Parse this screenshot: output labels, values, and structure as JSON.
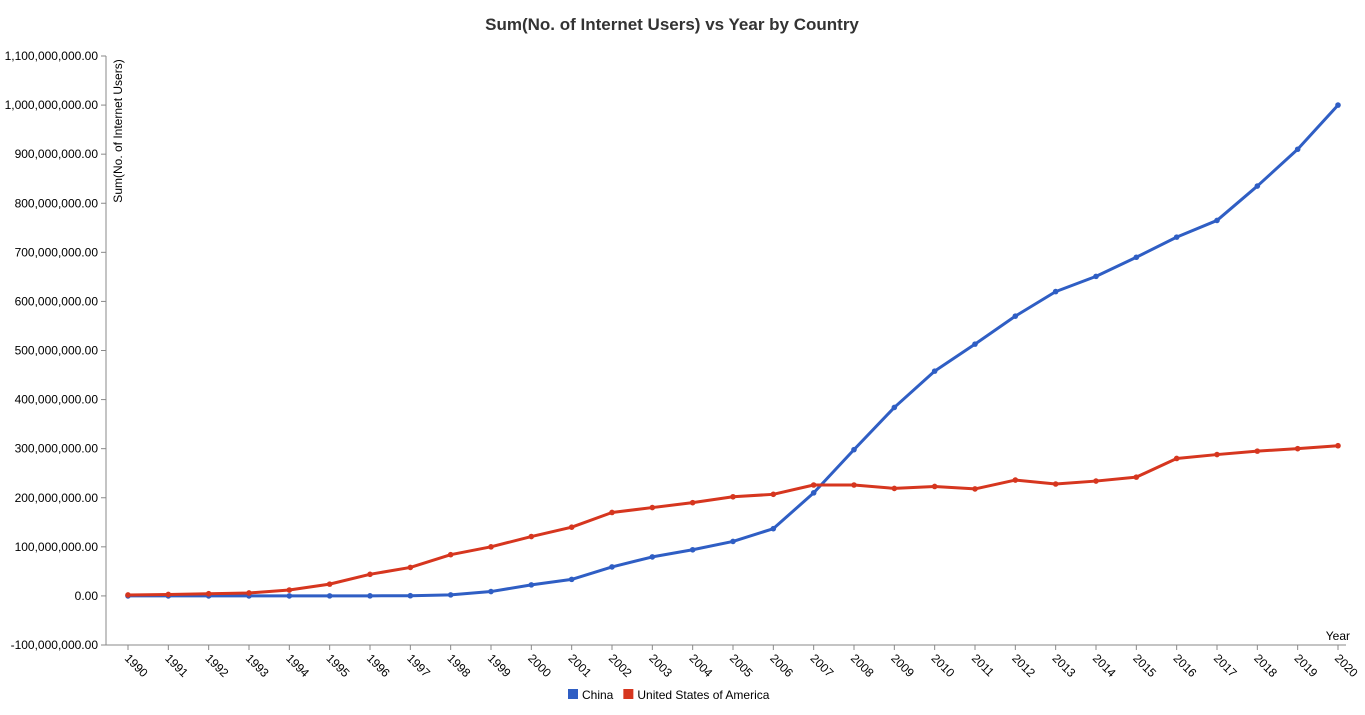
{
  "chart_data": {
    "type": "line",
    "title": "Sum(No. of Internet Users) vs Year by Country",
    "xlabel": "Year",
    "ylabel": "Sum(No. of Internet Users)",
    "ylim": [
      -100000000,
      1100000000
    ],
    "yticks": [
      -100000000,
      0,
      100000000,
      200000000,
      300000000,
      400000000,
      500000000,
      600000000,
      700000000,
      800000000,
      900000000,
      1000000000,
      1100000000
    ],
    "ytick_labels": [
      "-100,000,000.00",
      "0.00",
      "100,000,000.00",
      "200,000,000.00",
      "300,000,000.00",
      "400,000,000.00",
      "500,000,000.00",
      "600,000,000.00",
      "700,000,000.00",
      "800,000,000.00",
      "900,000,000.00",
      "1,000,000,000.00",
      "1,100,000,000.00"
    ],
    "x": [
      "1990",
      "1991",
      "1992",
      "1993",
      "1994",
      "1995",
      "1996",
      "1997",
      "1998",
      "1999",
      "2000",
      "2001",
      "2002",
      "2003",
      "2004",
      "2005",
      "2006",
      "2007",
      "2008",
      "2009",
      "2010",
      "2011",
      "2012",
      "2013",
      "2014",
      "2015",
      "2016",
      "2017",
      "2018",
      "2019",
      "2020"
    ],
    "series": [
      {
        "name": "China",
        "color": "#2f5ec4",
        "values": [
          0,
          0,
          0,
          2000,
          14000,
          60000,
          160000,
          400000,
          2100000,
          8900000,
          22500000,
          33700000,
          59100000,
          79500000,
          94000000,
          111000000,
          137000000,
          210000000,
          298000000,
          384000000,
          458000000,
          513000000,
          570000000,
          620000000,
          651000000,
          690000000,
          731000000,
          765000000,
          835000000,
          910000000,
          1000000000
        ]
      },
      {
        "name": "United States of America",
        "color": "#d6361f",
        "values": [
          1980000,
          3000000,
          4500000,
          6000000,
          12000000,
          24000000,
          44000000,
          58000000,
          84000000,
          100000000,
          121000000,
          140000000,
          170000000,
          180000000,
          190000000,
          202000000,
          207000000,
          226000000,
          226000000,
          219000000,
          223000000,
          218000000,
          236000000,
          228000000,
          234000000,
          242000000,
          280000000,
          288000000,
          295000000,
          300000000,
          306000000
        ]
      }
    ],
    "grid": false,
    "legend": "bottom-center"
  }
}
